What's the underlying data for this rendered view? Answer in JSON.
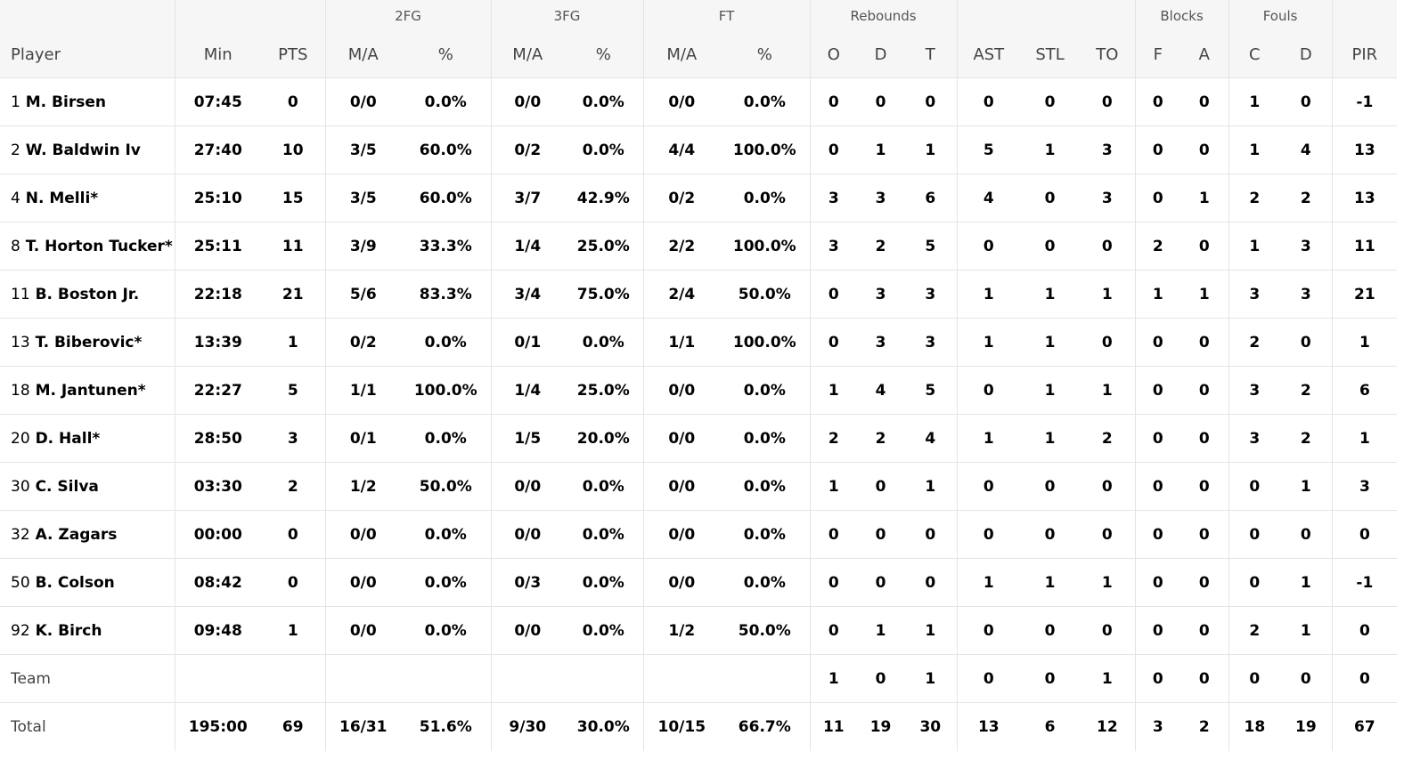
{
  "headers": {
    "groups": {
      "fg2": "2FG",
      "fg3": "3FG",
      "ft": "FT",
      "rebounds": "Rebounds",
      "blocks": "Blocks",
      "fouls": "Fouls"
    },
    "columns": {
      "player": "Player",
      "min": "Min",
      "pts": "PTS",
      "fg2_ma": "M/A",
      "fg2_pct": "%",
      "fg3_ma": "M/A",
      "fg3_pct": "%",
      "ft_ma": "M/A",
      "ft_pct": "%",
      "reb_o": "O",
      "reb_d": "D",
      "reb_t": "T",
      "ast": "AST",
      "stl": "STL",
      "to": "TO",
      "blk_f": "F",
      "blk_a": "A",
      "foul_c": "C",
      "foul_d": "D",
      "pir": "PIR"
    }
  },
  "rows": [
    {
      "num": "1",
      "name": "M. Birsen",
      "min": "07:45",
      "pts": "0",
      "fg2_ma": "0/0",
      "fg2_pct": "0.0%",
      "fg3_ma": "0/0",
      "fg3_pct": "0.0%",
      "ft_ma": "0/0",
      "ft_pct": "0.0%",
      "reb_o": "0",
      "reb_d": "0",
      "reb_t": "0",
      "ast": "0",
      "stl": "0",
      "to": "0",
      "blk_f": "0",
      "blk_a": "0",
      "foul_c": "1",
      "foul_d": "0",
      "pir": "-1"
    },
    {
      "num": "2",
      "name": "W. Baldwin Iv",
      "min": "27:40",
      "pts": "10",
      "fg2_ma": "3/5",
      "fg2_pct": "60.0%",
      "fg3_ma": "0/2",
      "fg3_pct": "0.0%",
      "ft_ma": "4/4",
      "ft_pct": "100.0%",
      "reb_o": "0",
      "reb_d": "1",
      "reb_t": "1",
      "ast": "5",
      "stl": "1",
      "to": "3",
      "blk_f": "0",
      "blk_a": "0",
      "foul_c": "1",
      "foul_d": "4",
      "pir": "13"
    },
    {
      "num": "4",
      "name": "N. Melli*",
      "min": "25:10",
      "pts": "15",
      "fg2_ma": "3/5",
      "fg2_pct": "60.0%",
      "fg3_ma": "3/7",
      "fg3_pct": "42.9%",
      "ft_ma": "0/2",
      "ft_pct": "0.0%",
      "reb_o": "3",
      "reb_d": "3",
      "reb_t": "6",
      "ast": "4",
      "stl": "0",
      "to": "3",
      "blk_f": "0",
      "blk_a": "1",
      "foul_c": "2",
      "foul_d": "2",
      "pir": "13"
    },
    {
      "num": "8",
      "name": "T. Horton Tucker*",
      "min": "25:11",
      "pts": "11",
      "fg2_ma": "3/9",
      "fg2_pct": "33.3%",
      "fg3_ma": "1/4",
      "fg3_pct": "25.0%",
      "ft_ma": "2/2",
      "ft_pct": "100.0%",
      "reb_o": "3",
      "reb_d": "2",
      "reb_t": "5",
      "ast": "0",
      "stl": "0",
      "to": "0",
      "blk_f": "2",
      "blk_a": "0",
      "foul_c": "1",
      "foul_d": "3",
      "pir": "11"
    },
    {
      "num": "11",
      "name": "B. Boston Jr.",
      "min": "22:18",
      "pts": "21",
      "fg2_ma": "5/6",
      "fg2_pct": "83.3%",
      "fg3_ma": "3/4",
      "fg3_pct": "75.0%",
      "ft_ma": "2/4",
      "ft_pct": "50.0%",
      "reb_o": "0",
      "reb_d": "3",
      "reb_t": "3",
      "ast": "1",
      "stl": "1",
      "to": "1",
      "blk_f": "1",
      "blk_a": "1",
      "foul_c": "3",
      "foul_d": "3",
      "pir": "21"
    },
    {
      "num": "13",
      "name": "T. Biberovic*",
      "min": "13:39",
      "pts": "1",
      "fg2_ma": "0/2",
      "fg2_pct": "0.0%",
      "fg3_ma": "0/1",
      "fg3_pct": "0.0%",
      "ft_ma": "1/1",
      "ft_pct": "100.0%",
      "reb_o": "0",
      "reb_d": "3",
      "reb_t": "3",
      "ast": "1",
      "stl": "1",
      "to": "0",
      "blk_f": "0",
      "blk_a": "0",
      "foul_c": "2",
      "foul_d": "0",
      "pir": "1"
    },
    {
      "num": "18",
      "name": "M. Jantunen*",
      "min": "22:27",
      "pts": "5",
      "fg2_ma": "1/1",
      "fg2_pct": "100.0%",
      "fg3_ma": "1/4",
      "fg3_pct": "25.0%",
      "ft_ma": "0/0",
      "ft_pct": "0.0%",
      "reb_o": "1",
      "reb_d": "4",
      "reb_t": "5",
      "ast": "0",
      "stl": "1",
      "to": "1",
      "blk_f": "0",
      "blk_a": "0",
      "foul_c": "3",
      "foul_d": "2",
      "pir": "6"
    },
    {
      "num": "20",
      "name": "D. Hall*",
      "min": "28:50",
      "pts": "3",
      "fg2_ma": "0/1",
      "fg2_pct": "0.0%",
      "fg3_ma": "1/5",
      "fg3_pct": "20.0%",
      "ft_ma": "0/0",
      "ft_pct": "0.0%",
      "reb_o": "2",
      "reb_d": "2",
      "reb_t": "4",
      "ast": "1",
      "stl": "1",
      "to": "2",
      "blk_f": "0",
      "blk_a": "0",
      "foul_c": "3",
      "foul_d": "2",
      "pir": "1"
    },
    {
      "num": "30",
      "name": "C. Silva",
      "min": "03:30",
      "pts": "2",
      "fg2_ma": "1/2",
      "fg2_pct": "50.0%",
      "fg3_ma": "0/0",
      "fg3_pct": "0.0%",
      "ft_ma": "0/0",
      "ft_pct": "0.0%",
      "reb_o": "1",
      "reb_d": "0",
      "reb_t": "1",
      "ast": "0",
      "stl": "0",
      "to": "0",
      "blk_f": "0",
      "blk_a": "0",
      "foul_c": "0",
      "foul_d": "1",
      "pir": "3"
    },
    {
      "num": "32",
      "name": "A. Zagars",
      "min": "00:00",
      "pts": "0",
      "fg2_ma": "0/0",
      "fg2_pct": "0.0%",
      "fg3_ma": "0/0",
      "fg3_pct": "0.0%",
      "ft_ma": "0/0",
      "ft_pct": "0.0%",
      "reb_o": "0",
      "reb_d": "0",
      "reb_t": "0",
      "ast": "0",
      "stl": "0",
      "to": "0",
      "blk_f": "0",
      "blk_a": "0",
      "foul_c": "0",
      "foul_d": "0",
      "pir": "0"
    },
    {
      "num": "50",
      "name": "B. Colson",
      "min": "08:42",
      "pts": "0",
      "fg2_ma": "0/0",
      "fg2_pct": "0.0%",
      "fg3_ma": "0/3",
      "fg3_pct": "0.0%",
      "ft_ma": "0/0",
      "ft_pct": "0.0%",
      "reb_o": "0",
      "reb_d": "0",
      "reb_t": "0",
      "ast": "1",
      "stl": "1",
      "to": "1",
      "blk_f": "0",
      "blk_a": "0",
      "foul_c": "0",
      "foul_d": "1",
      "pir": "-1"
    },
    {
      "num": "92",
      "name": "K. Birch",
      "min": "09:48",
      "pts": "1",
      "fg2_ma": "0/0",
      "fg2_pct": "0.0%",
      "fg3_ma": "0/0",
      "fg3_pct": "0.0%",
      "ft_ma": "1/2",
      "ft_pct": "50.0%",
      "reb_o": "0",
      "reb_d": "1",
      "reb_t": "1",
      "ast": "0",
      "stl": "0",
      "to": "0",
      "blk_f": "0",
      "blk_a": "0",
      "foul_c": "2",
      "foul_d": "1",
      "pir": "0"
    }
  ],
  "team": {
    "label": "Team",
    "reb_o": "1",
    "reb_d": "0",
    "reb_t": "1",
    "ast": "0",
    "stl": "0",
    "to": "1",
    "blk_f": "0",
    "blk_a": "0",
    "foul_c": "0",
    "foul_d": "0",
    "pir": "0"
  },
  "total": {
    "label": "Total",
    "min": "195:00",
    "pts": "69",
    "fg2_ma": "16/31",
    "fg2_pct": "51.6%",
    "fg3_ma": "9/30",
    "fg3_pct": "30.0%",
    "ft_ma": "10/15",
    "ft_pct": "66.7%",
    "reb_o": "11",
    "reb_d": "19",
    "reb_t": "30",
    "ast": "13",
    "stl": "6",
    "to": "12",
    "blk_f": "3",
    "blk_a": "2",
    "foul_c": "18",
    "foul_d": "19",
    "pir": "67"
  }
}
